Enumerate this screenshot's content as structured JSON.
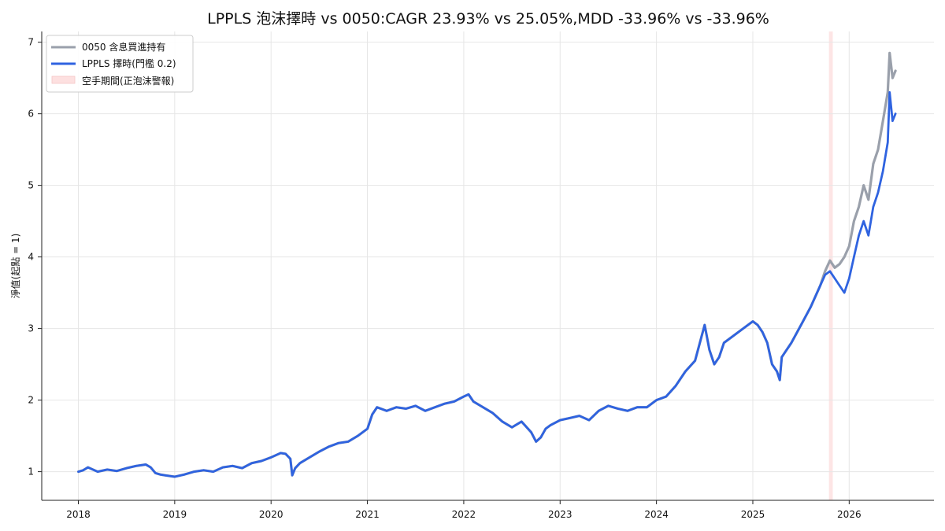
{
  "chart_data": {
    "type": "line",
    "title": "LPPLS 泡沫擇時 vs 0050:CAGR 23.93% vs 25.05%,MDD -33.96% vs -33.96%",
    "xlabel": "",
    "ylabel": "淨值(起點 = 1)",
    "xlim": [
      2017.62,
      2026.88
    ],
    "ylim": [
      0.6,
      7.15
    ],
    "x_ticks": [
      "2018",
      "2019",
      "2020",
      "2021",
      "2022",
      "2023",
      "2024",
      "2025",
      "2026"
    ],
    "y_ticks": [
      "1",
      "2",
      "3",
      "4",
      "5",
      "6",
      "7"
    ],
    "grid": true,
    "legend_position": "top-left",
    "series": [
      {
        "name": "0050 含息買進持有",
        "color": "#9aa0ab",
        "x": [
          2018.0,
          2018.05,
          2018.1,
          2018.2,
          2018.3,
          2018.4,
          2018.5,
          2018.6,
          2018.7,
          2018.75,
          2018.8,
          2018.85,
          2018.9,
          2019.0,
          2019.1,
          2019.2,
          2019.3,
          2019.4,
          2019.5,
          2019.6,
          2019.7,
          2019.8,
          2019.9,
          2020.0,
          2020.1,
          2020.15,
          2020.2,
          2020.22,
          2020.25,
          2020.3,
          2020.4,
          2020.5,
          2020.6,
          2020.7,
          2020.8,
          2020.9,
          2021.0,
          2021.05,
          2021.1,
          2021.2,
          2021.3,
          2021.4,
          2021.5,
          2021.6,
          2021.7,
          2021.8,
          2021.9,
          2022.0,
          2022.05,
          2022.1,
          2022.2,
          2022.3,
          2022.4,
          2022.5,
          2022.6,
          2022.7,
          2022.75,
          2022.8,
          2022.85,
          2022.9,
          2023.0,
          2023.1,
          2023.2,
          2023.3,
          2023.4,
          2023.5,
          2023.6,
          2023.7,
          2023.8,
          2023.9,
          2024.0,
          2024.1,
          2024.2,
          2024.3,
          2024.4,
          2024.45,
          2024.5,
          2024.55,
          2024.6,
          2024.65,
          2024.7,
          2024.8,
          2024.9,
          2025.0,
          2025.05,
          2025.1,
          2025.15,
          2025.2,
          2025.25,
          2025.28,
          2025.3,
          2025.35,
          2025.4,
          2025.5,
          2025.6,
          2025.7,
          2025.75,
          2025.8,
          2025.85,
          2025.9,
          2025.95,
          2026.0,
          2026.05,
          2026.1,
          2026.15,
          2026.2,
          2026.25,
          2026.3,
          2026.35,
          2026.4,
          2026.42,
          2026.45,
          2026.48
        ],
        "y": [
          1.0,
          1.02,
          1.06,
          1.0,
          1.03,
          1.01,
          1.05,
          1.08,
          1.1,
          1.06,
          0.98,
          0.96,
          0.95,
          0.93,
          0.96,
          1.0,
          1.02,
          1.0,
          1.06,
          1.08,
          1.05,
          1.12,
          1.15,
          1.2,
          1.26,
          1.25,
          1.18,
          0.95,
          1.05,
          1.12,
          1.2,
          1.28,
          1.35,
          1.4,
          1.42,
          1.5,
          1.6,
          1.8,
          1.9,
          1.85,
          1.9,
          1.88,
          1.92,
          1.85,
          1.9,
          1.95,
          1.98,
          2.05,
          2.08,
          1.98,
          1.9,
          1.82,
          1.7,
          1.62,
          1.7,
          1.55,
          1.42,
          1.48,
          1.6,
          1.65,
          1.72,
          1.75,
          1.78,
          1.72,
          1.85,
          1.92,
          1.88,
          1.85,
          1.9,
          1.9,
          2.0,
          2.05,
          2.2,
          2.4,
          2.55,
          2.8,
          3.05,
          2.7,
          2.5,
          2.6,
          2.8,
          2.9,
          3.0,
          3.1,
          3.05,
          2.95,
          2.8,
          2.5,
          2.4,
          2.28,
          2.6,
          2.7,
          2.8,
          3.05,
          3.3,
          3.6,
          3.8,
          3.95,
          3.85,
          3.9,
          4.0,
          4.15,
          4.5,
          4.7,
          5.0,
          4.8,
          5.3,
          5.5,
          5.9,
          6.3,
          6.85,
          6.5,
          6.6
        ]
      },
      {
        "name": "LPPLS 擇時(門檻 0.2)",
        "color": "#2f63e0",
        "x": [
          2018.0,
          2018.05,
          2018.1,
          2018.2,
          2018.3,
          2018.4,
          2018.5,
          2018.6,
          2018.7,
          2018.75,
          2018.8,
          2018.85,
          2018.9,
          2019.0,
          2019.1,
          2019.2,
          2019.3,
          2019.4,
          2019.5,
          2019.6,
          2019.7,
          2019.8,
          2019.9,
          2020.0,
          2020.1,
          2020.15,
          2020.2,
          2020.22,
          2020.25,
          2020.3,
          2020.4,
          2020.5,
          2020.6,
          2020.7,
          2020.8,
          2020.9,
          2021.0,
          2021.05,
          2021.1,
          2021.2,
          2021.3,
          2021.4,
          2021.5,
          2021.6,
          2021.7,
          2021.8,
          2021.9,
          2022.0,
          2022.05,
          2022.1,
          2022.2,
          2022.3,
          2022.4,
          2022.5,
          2022.6,
          2022.7,
          2022.75,
          2022.8,
          2022.85,
          2022.9,
          2023.0,
          2023.1,
          2023.2,
          2023.3,
          2023.4,
          2023.5,
          2023.6,
          2023.7,
          2023.8,
          2023.9,
          2024.0,
          2024.1,
          2024.2,
          2024.3,
          2024.4,
          2024.45,
          2024.5,
          2024.55,
          2024.6,
          2024.65,
          2024.7,
          2024.8,
          2024.9,
          2025.0,
          2025.05,
          2025.1,
          2025.15,
          2025.2,
          2025.25,
          2025.28,
          2025.3,
          2025.35,
          2025.4,
          2025.5,
          2025.6,
          2025.7,
          2025.75,
          2025.8,
          2025.85,
          2025.9,
          2025.95,
          2026.0,
          2026.05,
          2026.1,
          2026.15,
          2026.2,
          2026.25,
          2026.3,
          2026.35,
          2026.4,
          2026.42,
          2026.45,
          2026.48
        ],
        "y": [
          1.0,
          1.02,
          1.06,
          1.0,
          1.03,
          1.01,
          1.05,
          1.08,
          1.1,
          1.06,
          0.98,
          0.96,
          0.95,
          0.93,
          0.96,
          1.0,
          1.02,
          1.0,
          1.06,
          1.08,
          1.05,
          1.12,
          1.15,
          1.2,
          1.26,
          1.25,
          1.18,
          0.95,
          1.05,
          1.12,
          1.2,
          1.28,
          1.35,
          1.4,
          1.42,
          1.5,
          1.6,
          1.8,
          1.9,
          1.85,
          1.9,
          1.88,
          1.92,
          1.85,
          1.9,
          1.95,
          1.98,
          2.05,
          2.08,
          1.98,
          1.9,
          1.82,
          1.7,
          1.62,
          1.7,
          1.55,
          1.42,
          1.48,
          1.6,
          1.65,
          1.72,
          1.75,
          1.78,
          1.72,
          1.85,
          1.92,
          1.88,
          1.85,
          1.9,
          1.9,
          2.0,
          2.05,
          2.2,
          2.4,
          2.55,
          2.8,
          3.05,
          2.7,
          2.5,
          2.6,
          2.8,
          2.9,
          3.0,
          3.1,
          3.05,
          2.95,
          2.8,
          2.5,
          2.4,
          2.28,
          2.6,
          2.7,
          2.8,
          3.05,
          3.3,
          3.6,
          3.75,
          3.8,
          3.7,
          3.6,
          3.5,
          3.7,
          4.0,
          4.3,
          4.5,
          4.3,
          4.7,
          4.9,
          5.2,
          5.6,
          6.3,
          5.9,
          6.0
        ]
      }
    ],
    "shaded_regions": [
      {
        "name": "空手期間(正泡沫警報)",
        "x_start": 2025.79,
        "x_end": 2025.83,
        "color": "#fde0e0"
      }
    ]
  }
}
